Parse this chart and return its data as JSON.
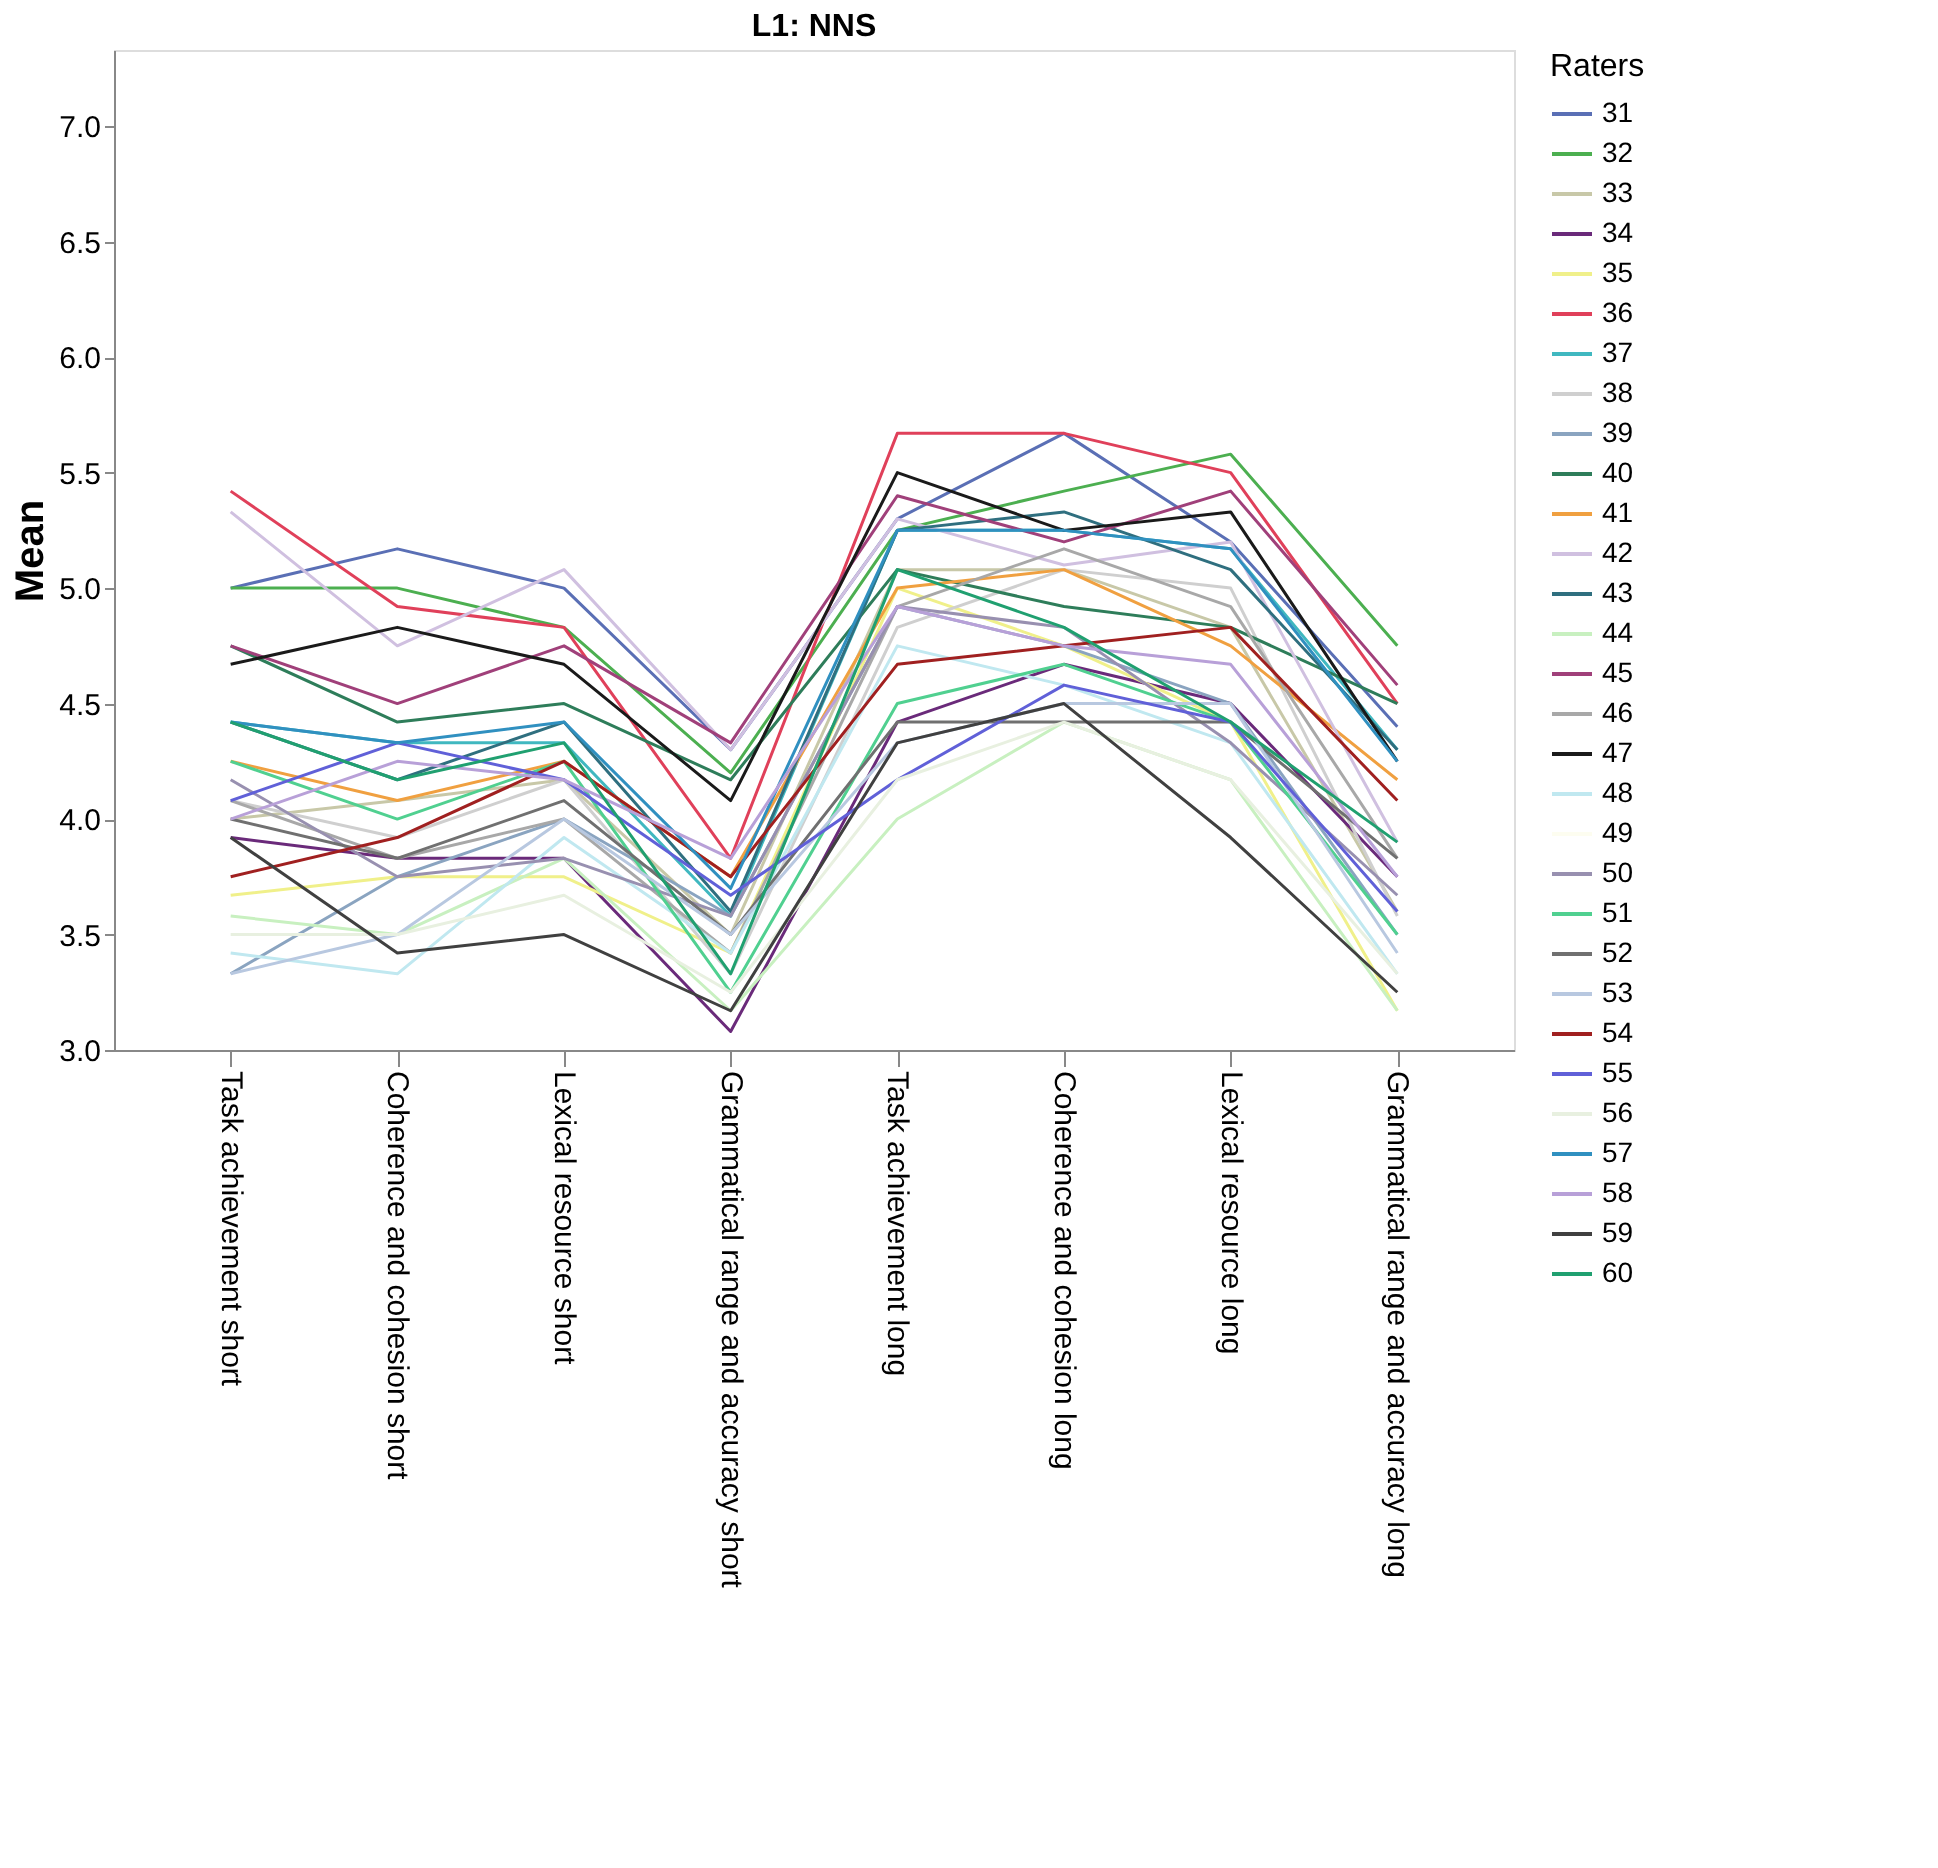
{
  "chart_data": {
    "type": "line",
    "title": "L1: NNS",
    "ylabel": "Mean",
    "legend_title": "Raters",
    "legend": "right",
    "grid": false,
    "marker": "none",
    "line_style": "solid",
    "categories": [
      "Task achievement short",
      "Coherence and cohesion short",
      "Lexical resource short",
      "Grammatical range and accuracy short",
      "Task achievement long",
      "Coherence and cohesion long",
      "Lexical resource long",
      "Grammatical range and accuracy long"
    ],
    "ylim": [
      3.0,
      7.33
    ],
    "yticks": [
      {
        "value": 3.0,
        "label": "3.0"
      },
      {
        "value": 3.5,
        "label": "3.5"
      },
      {
        "value": 4.0,
        "label": "4.0"
      },
      {
        "value": 4.5,
        "label": "4.5"
      },
      {
        "value": 5.0,
        "label": "5.0"
      },
      {
        "value": 5.5,
        "label": "5.5"
      },
      {
        "value": 6.0,
        "label": "6.0"
      },
      {
        "value": 6.5,
        "label": "6.5"
      },
      {
        "value": 7.0,
        "label": "7.0"
      }
    ],
    "series": [
      {
        "name": "31",
        "color": "#5a6fb5",
        "values": [
          5.0,
          5.17,
          5.0,
          4.3,
          5.3,
          5.67,
          5.2,
          4.4
        ]
      },
      {
        "name": "32",
        "color": "#4caf50",
        "values": [
          5.0,
          5.0,
          4.83,
          4.2,
          5.25,
          5.42,
          5.58,
          4.75
        ]
      },
      {
        "name": "33",
        "color": "#c8c8a8",
        "values": [
          4.0,
          4.08,
          4.17,
          3.5,
          5.08,
          5.08,
          4.83,
          3.6
        ]
      },
      {
        "name": "34",
        "color": "#6a2a7a",
        "values": [
          3.92,
          3.83,
          3.83,
          3.08,
          4.42,
          4.67,
          4.5,
          3.75
        ]
      },
      {
        "name": "35",
        "color": "#f0f08a",
        "values": [
          3.67,
          3.75,
          3.75,
          3.42,
          5.0,
          4.75,
          4.42,
          3.17
        ]
      },
      {
        "name": "36",
        "color": "#e0405a",
        "values": [
          5.42,
          4.92,
          4.83,
          3.83,
          5.67,
          5.67,
          5.5,
          4.5
        ]
      },
      {
        "name": "37",
        "color": "#40b8c0",
        "values": [
          4.42,
          4.33,
          4.33,
          3.58,
          5.25,
          5.25,
          5.17,
          4.3
        ]
      },
      {
        "name": "38",
        "color": "#cfcfcf",
        "values": [
          4.08,
          3.92,
          4.17,
          3.33,
          4.83,
          5.08,
          5.0,
          3.58
        ]
      },
      {
        "name": "39",
        "color": "#8aa4c0",
        "values": [
          3.33,
          3.75,
          4.0,
          3.58,
          4.92,
          4.75,
          4.5,
          3.5
        ]
      },
      {
        "name": "40",
        "color": "#2e7d5a",
        "values": [
          4.75,
          4.42,
          4.5,
          4.17,
          5.08,
          4.92,
          4.83,
          4.5
        ]
      },
      {
        "name": "41",
        "color": "#f0a040",
        "values": [
          4.25,
          4.08,
          4.25,
          3.75,
          5.0,
          5.08,
          4.75,
          4.17
        ]
      },
      {
        "name": "42",
        "color": "#d0c0e0",
        "values": [
          5.33,
          4.75,
          5.08,
          4.3,
          5.3,
          5.1,
          5.2,
          3.9
        ]
      },
      {
        "name": "43",
        "color": "#2f6f7f",
        "values": [
          4.42,
          4.17,
          4.42,
          3.6,
          5.25,
          5.33,
          5.08,
          4.3
        ]
      },
      {
        "name": "44",
        "color": "#c8f0c0",
        "values": [
          3.58,
          3.5,
          3.83,
          3.17,
          4.0,
          4.42,
          4.17,
          3.17
        ]
      },
      {
        "name": "45",
        "color": "#a0407a",
        "values": [
          4.75,
          4.5,
          4.75,
          4.33,
          5.4,
          5.2,
          5.42,
          4.58
        ]
      },
      {
        "name": "46",
        "color": "#a8a8a8",
        "values": [
          4.08,
          3.83,
          4.0,
          3.42,
          4.92,
          5.17,
          4.92,
          3.83
        ]
      },
      {
        "name": "47",
        "color": "#1a1a1a",
        "values": [
          4.67,
          4.83,
          4.67,
          4.08,
          5.5,
          5.25,
          5.33,
          4.25
        ]
      },
      {
        "name": "48",
        "color": "#c0e8f0",
        "values": [
          3.42,
          3.33,
          3.92,
          3.42,
          4.75,
          4.58,
          4.33,
          3.33
        ]
      },
      {
        "name": "49",
        "color": "#fdfdf0",
        "values": [
          null,
          null,
          null,
          null,
          null,
          null,
          null,
          null
        ]
      },
      {
        "name": "50",
        "color": "#9890b0",
        "values": [
          4.17,
          3.75,
          3.83,
          3.58,
          4.92,
          4.83,
          4.33,
          3.67
        ]
      },
      {
        "name": "51",
        "color": "#50d090",
        "values": [
          4.25,
          4.0,
          4.25,
          3.25,
          4.5,
          4.67,
          4.42,
          3.5
        ]
      },
      {
        "name": "52",
        "color": "#707070",
        "values": [
          4.0,
          3.83,
          4.08,
          3.5,
          4.42,
          4.42,
          4.42,
          3.83
        ]
      },
      {
        "name": "53",
        "color": "#b8c8e0",
        "values": [
          3.33,
          3.5,
          4.0,
          3.5,
          4.33,
          4.5,
          4.5,
          3.42
        ]
      },
      {
        "name": "54",
        "color": "#a02020",
        "values": [
          3.75,
          3.92,
          4.25,
          3.75,
          4.67,
          4.75,
          4.83,
          4.08
        ]
      },
      {
        "name": "55",
        "color": "#6060d8",
        "values": [
          4.08,
          4.33,
          4.17,
          3.67,
          4.17,
          4.58,
          4.42,
          3.6
        ]
      },
      {
        "name": "56",
        "color": "#e8f0e0",
        "values": [
          3.5,
          3.5,
          3.67,
          3.25,
          4.17,
          4.42,
          4.17,
          3.33
        ]
      },
      {
        "name": "57",
        "color": "#3090c0",
        "values": [
          4.42,
          4.33,
          4.42,
          3.7,
          5.25,
          5.25,
          5.17,
          4.25
        ]
      },
      {
        "name": "58",
        "color": "#b8a0d8",
        "values": [
          4.0,
          4.25,
          4.17,
          3.83,
          4.92,
          4.75,
          4.67,
          3.75
        ]
      },
      {
        "name": "59",
        "color": "#404040",
        "values": [
          3.92,
          3.42,
          3.5,
          3.17,
          4.33,
          4.5,
          3.92,
          3.25
        ]
      },
      {
        "name": "60",
        "color": "#20a070",
        "values": [
          4.42,
          4.17,
          4.33,
          3.33,
          5.08,
          4.83,
          4.42,
          3.9
        ]
      }
    ]
  }
}
